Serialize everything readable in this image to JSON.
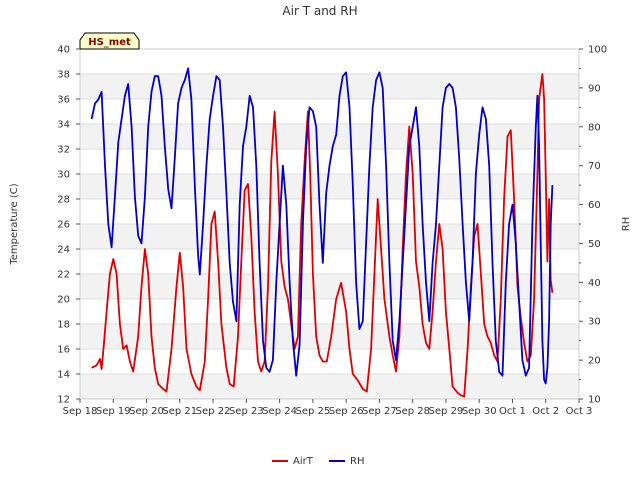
{
  "chart_data": {
    "type": "line",
    "title": "Air T and RH",
    "badge": "HS_met",
    "xlabel": "",
    "ylabel": "Temperature (C)",
    "y2label": "RH",
    "x_range_days": [
      0,
      15
    ],
    "x_ticks": [
      {
        "day": 0,
        "label": "Sep 18"
      },
      {
        "day": 1,
        "label": "Sep 19"
      },
      {
        "day": 2,
        "label": "Sep 20"
      },
      {
        "day": 3,
        "label": "Sep 21"
      },
      {
        "day": 4,
        "label": "Sep 22"
      },
      {
        "day": 5,
        "label": "Sep 23"
      },
      {
        "day": 6,
        "label": "Sep 24"
      },
      {
        "day": 7,
        "label": "Sep 25"
      },
      {
        "day": 8,
        "label": "Sep 26"
      },
      {
        "day": 9,
        "label": "Sep 27"
      },
      {
        "day": 10,
        "label": "Sep 28"
      },
      {
        "day": 11,
        "label": "Sep 29"
      },
      {
        "day": 12,
        "label": "Sep 30"
      },
      {
        "day": 13,
        "label": "Oct 1"
      },
      {
        "day": 14,
        "label": "Oct 2"
      },
      {
        "day": 15,
        "label": "Oct 3"
      }
    ],
    "ylim": [
      12,
      40
    ],
    "y_ticks": [
      12,
      14,
      16,
      18,
      20,
      22,
      24,
      26,
      28,
      30,
      32,
      34,
      36,
      38,
      40
    ],
    "y2lim": [
      10,
      100
    ],
    "y2_ticks": [
      10,
      20,
      30,
      40,
      50,
      60,
      70,
      80,
      90,
      100
    ],
    "legend": [
      {
        "name": "AirT",
        "color": "#dd0000"
      },
      {
        "name": "RH",
        "color": "#0000cc"
      }
    ],
    "series": [
      {
        "name": "AirT",
        "axis": "left",
        "color": "#dd0000",
        "points": [
          [
            0.35,
            14.5
          ],
          [
            0.5,
            14.7
          ],
          [
            0.6,
            15.2
          ],
          [
            0.65,
            14.4
          ],
          [
            0.72,
            16.5
          ],
          [
            0.8,
            19
          ],
          [
            0.9,
            22
          ],
          [
            1.0,
            23.2
          ],
          [
            1.1,
            22
          ],
          [
            1.2,
            18
          ],
          [
            1.3,
            16
          ],
          [
            1.4,
            16.3
          ],
          [
            1.5,
            15
          ],
          [
            1.6,
            14.2
          ],
          [
            1.75,
            17
          ],
          [
            1.85,
            21
          ],
          [
            1.95,
            24
          ],
          [
            2.05,
            22
          ],
          [
            2.15,
            17
          ],
          [
            2.25,
            14.5
          ],
          [
            2.35,
            13.2
          ],
          [
            2.5,
            12.8
          ],
          [
            2.6,
            12.6
          ],
          [
            2.75,
            16
          ],
          [
            2.9,
            21
          ],
          [
            3.0,
            23.7
          ],
          [
            3.1,
            21
          ],
          [
            3.2,
            16
          ],
          [
            3.35,
            14
          ],
          [
            3.5,
            13
          ],
          [
            3.6,
            12.7
          ],
          [
            3.75,
            15
          ],
          [
            3.85,
            20
          ],
          [
            3.95,
            26
          ],
          [
            4.05,
            27
          ],
          [
            4.15,
            23
          ],
          [
            4.25,
            18
          ],
          [
            4.4,
            14.5
          ],
          [
            4.5,
            13.2
          ],
          [
            4.62,
            13
          ],
          [
            4.75,
            17
          ],
          [
            4.85,
            23
          ],
          [
            4.95,
            28.7
          ],
          [
            5.05,
            29.2
          ],
          [
            5.15,
            25
          ],
          [
            5.25,
            19
          ],
          [
            5.35,
            15
          ],
          [
            5.45,
            14.2
          ],
          [
            5.55,
            15
          ],
          [
            5.65,
            21
          ],
          [
            5.75,
            31
          ],
          [
            5.85,
            35
          ],
          [
            5.95,
            30
          ],
          [
            6.05,
            23
          ],
          [
            6.15,
            21
          ],
          [
            6.25,
            20
          ],
          [
            6.35,
            18
          ],
          [
            6.45,
            16
          ],
          [
            6.55,
            17
          ],
          [
            6.65,
            26
          ],
          [
            6.75,
            31
          ],
          [
            6.85,
            35
          ],
          [
            6.92,
            30
          ],
          [
            7.0,
            22
          ],
          [
            7.1,
            17
          ],
          [
            7.2,
            15.5
          ],
          [
            7.3,
            15
          ],
          [
            7.42,
            15
          ],
          [
            7.55,
            17
          ],
          [
            7.7,
            20
          ],
          [
            7.85,
            21.3
          ],
          [
            8.0,
            19
          ],
          [
            8.1,
            16
          ],
          [
            8.2,
            14
          ],
          [
            8.35,
            13.5
          ],
          [
            8.5,
            12.8
          ],
          [
            8.62,
            12.6
          ],
          [
            8.75,
            16
          ],
          [
            8.85,
            22
          ],
          [
            8.95,
            28
          ],
          [
            9.05,
            24
          ],
          [
            9.15,
            20
          ],
          [
            9.3,
            17
          ],
          [
            9.4,
            15.5
          ],
          [
            9.5,
            14.2
          ],
          [
            9.6,
            17
          ],
          [
            9.7,
            24
          ],
          [
            9.8,
            30
          ],
          [
            9.9,
            33.8
          ],
          [
            10.0,
            30
          ],
          [
            10.1,
            23
          ],
          [
            10.2,
            21
          ],
          [
            10.3,
            18
          ],
          [
            10.4,
            16.5
          ],
          [
            10.5,
            16
          ],
          [
            10.6,
            19
          ],
          [
            10.7,
            23
          ],
          [
            10.8,
            26
          ],
          [
            10.9,
            24
          ],
          [
            11.0,
            19
          ],
          [
            11.1,
            16
          ],
          [
            11.2,
            13
          ],
          [
            11.35,
            12.5
          ],
          [
            11.45,
            12.3
          ],
          [
            11.55,
            12.2
          ],
          [
            11.65,
            16
          ],
          [
            11.75,
            21
          ],
          [
            11.85,
            25
          ],
          [
            11.95,
            26
          ],
          [
            12.05,
            22
          ],
          [
            12.15,
            18
          ],
          [
            12.25,
            17
          ],
          [
            12.35,
            16.5
          ],
          [
            12.45,
            15.5
          ],
          [
            12.55,
            15
          ],
          [
            12.65,
            20
          ],
          [
            12.75,
            28
          ],
          [
            12.85,
            33
          ],
          [
            12.95,
            33.5
          ],
          [
            13.05,
            28
          ],
          [
            13.15,
            21
          ],
          [
            13.25,
            18.5
          ],
          [
            13.35,
            16.5
          ],
          [
            13.45,
            15
          ],
          [
            13.55,
            15.5
          ],
          [
            13.65,
            20
          ],
          [
            13.75,
            30
          ],
          [
            13.8,
            36
          ],
          [
            13.9,
            38
          ],
          [
            13.95,
            36
          ],
          [
            14.0,
            30
          ],
          [
            14.05,
            23
          ],
          [
            14.1,
            28
          ],
          [
            14.15,
            21.5
          ],
          [
            14.2,
            20.5
          ]
        ]
      },
      {
        "name": "RH",
        "axis": "right",
        "color": "#0000cc",
        "points": [
          [
            0.35,
            82
          ],
          [
            0.45,
            86
          ],
          [
            0.55,
            87
          ],
          [
            0.65,
            89
          ],
          [
            0.75,
            70
          ],
          [
            0.85,
            55
          ],
          [
            0.95,
            49
          ],
          [
            1.05,
            62
          ],
          [
            1.15,
            76
          ],
          [
            1.25,
            82
          ],
          [
            1.35,
            88
          ],
          [
            1.45,
            91
          ],
          [
            1.55,
            80
          ],
          [
            1.65,
            62
          ],
          [
            1.75,
            52
          ],
          [
            1.85,
            50
          ],
          [
            1.95,
            62
          ],
          [
            2.05,
            80
          ],
          [
            2.15,
            89
          ],
          [
            2.25,
            93
          ],
          [
            2.35,
            93
          ],
          [
            2.45,
            88
          ],
          [
            2.55,
            75
          ],
          [
            2.65,
            64
          ],
          [
            2.75,
            59
          ],
          [
            2.85,
            72
          ],
          [
            2.95,
            86
          ],
          [
            3.05,
            90
          ],
          [
            3.15,
            92
          ],
          [
            3.25,
            95
          ],
          [
            3.35,
            87
          ],
          [
            3.45,
            65
          ],
          [
            3.55,
            47
          ],
          [
            3.6,
            42
          ],
          [
            3.7,
            55
          ],
          [
            3.8,
            70
          ],
          [
            3.9,
            82
          ],
          [
            4.0,
            88
          ],
          [
            4.1,
            93
          ],
          [
            4.2,
            92
          ],
          [
            4.3,
            80
          ],
          [
            4.4,
            63
          ],
          [
            4.5,
            45
          ],
          [
            4.6,
            35
          ],
          [
            4.7,
            30
          ],
          [
            4.8,
            60
          ],
          [
            4.9,
            75
          ],
          [
            5.0,
            80
          ],
          [
            5.1,
            88
          ],
          [
            5.2,
            85
          ],
          [
            5.3,
            70
          ],
          [
            5.4,
            45
          ],
          [
            5.5,
            25
          ],
          [
            5.6,
            18
          ],
          [
            5.7,
            17
          ],
          [
            5.8,
            20
          ],
          [
            5.9,
            40
          ],
          [
            6.0,
            55
          ],
          [
            6.1,
            70
          ],
          [
            6.2,
            60
          ],
          [
            6.3,
            40
          ],
          [
            6.4,
            25
          ],
          [
            6.5,
            16
          ],
          [
            6.6,
            24
          ],
          [
            6.7,
            55
          ],
          [
            6.8,
            75
          ],
          [
            6.9,
            85
          ],
          [
            7.0,
            84
          ],
          [
            7.1,
            80
          ],
          [
            7.2,
            60
          ],
          [
            7.3,
            45
          ],
          [
            7.4,
            63
          ],
          [
            7.5,
            70
          ],
          [
            7.6,
            75
          ],
          [
            7.7,
            78
          ],
          [
            7.8,
            88
          ],
          [
            7.9,
            93
          ],
          [
            8.0,
            94
          ],
          [
            8.1,
            85
          ],
          [
            8.2,
            65
          ],
          [
            8.3,
            40
          ],
          [
            8.4,
            28
          ],
          [
            8.5,
            30
          ],
          [
            8.6,
            50
          ],
          [
            8.7,
            70
          ],
          [
            8.8,
            85
          ],
          [
            8.9,
            92
          ],
          [
            9.0,
            94
          ],
          [
            9.1,
            90
          ],
          [
            9.2,
            70
          ],
          [
            9.3,
            45
          ],
          [
            9.4,
            25
          ],
          [
            9.5,
            20
          ],
          [
            9.6,
            30
          ],
          [
            9.7,
            45
          ],
          [
            9.8,
            60
          ],
          [
            9.9,
            75
          ],
          [
            10.0,
            80
          ],
          [
            10.1,
            85
          ],
          [
            10.2,
            75
          ],
          [
            10.3,
            55
          ],
          [
            10.4,
            40
          ],
          [
            10.5,
            30
          ],
          [
            10.6,
            45
          ],
          [
            10.7,
            55
          ],
          [
            10.8,
            70
          ],
          [
            10.9,
            85
          ],
          [
            11.0,
            90
          ],
          [
            11.1,
            91
          ],
          [
            11.2,
            90
          ],
          [
            11.3,
            85
          ],
          [
            11.4,
            72
          ],
          [
            11.5,
            55
          ],
          [
            11.6,
            40
          ],
          [
            11.7,
            30
          ],
          [
            11.8,
            45
          ],
          [
            11.9,
            68
          ],
          [
            12.0,
            78
          ],
          [
            12.1,
            85
          ],
          [
            12.2,
            82
          ],
          [
            12.3,
            70
          ],
          [
            12.4,
            45
          ],
          [
            12.5,
            25
          ],
          [
            12.6,
            17
          ],
          [
            12.7,
            16
          ],
          [
            12.8,
            40
          ],
          [
            12.9,
            55
          ],
          [
            13.0,
            60
          ],
          [
            13.1,
            50
          ],
          [
            13.2,
            35
          ],
          [
            13.3,
            20
          ],
          [
            13.4,
            16
          ],
          [
            13.5,
            18
          ],
          [
            13.6,
            55
          ],
          [
            13.7,
            80
          ],
          [
            13.75,
            88
          ],
          [
            13.8,
            75
          ],
          [
            13.85,
            50
          ],
          [
            13.9,
            25
          ],
          [
            13.95,
            15
          ],
          [
            14.0,
            14
          ],
          [
            14.05,
            18
          ],
          [
            14.1,
            30
          ],
          [
            14.15,
            55
          ],
          [
            14.2,
            65
          ]
        ]
      }
    ]
  }
}
